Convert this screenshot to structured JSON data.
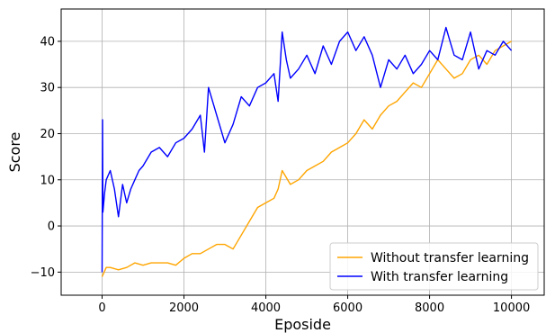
{
  "chart_data": {
    "type": "line",
    "title": "",
    "xlabel": "Eposide",
    "ylabel": "Score",
    "xlim": [
      -1000,
      10800
    ],
    "ylim": [
      -15,
      47
    ],
    "xticks": [
      0,
      2000,
      4000,
      6000,
      8000,
      10000
    ],
    "xtick_labels": [
      "0",
      "2000",
      "4000",
      "6000",
      "8000",
      "10000"
    ],
    "yticks": [
      -10,
      0,
      10,
      20,
      30,
      40
    ],
    "ytick_labels": [
      "−10",
      "0",
      "10",
      "20",
      "30",
      "40"
    ],
    "grid": true,
    "legend_position": "bottom-right",
    "series": [
      {
        "name": "Without transfer learning",
        "color": "#FFA500",
        "x": [
          0,
          100,
          200,
          400,
          600,
          800,
          1000,
          1200,
          1400,
          1600,
          1800,
          2000,
          2200,
          2400,
          2600,
          2800,
          3000,
          3200,
          3400,
          3600,
          3800,
          4000,
          4200,
          4300,
          4400,
          4600,
          4800,
          5000,
          5200,
          5400,
          5600,
          5800,
          6000,
          6200,
          6400,
          6600,
          6800,
          7000,
          7200,
          7400,
          7600,
          7800,
          8000,
          8200,
          8400,
          8600,
          8800,
          9000,
          9200,
          9400,
          9600,
          9800,
          10000
        ],
        "y": [
          -11,
          -9,
          -9,
          -9.5,
          -9,
          -8,
          -8.5,
          -8,
          -8,
          -8,
          -8.5,
          -7,
          -6,
          -6,
          -5,
          -4,
          -4,
          -5,
          -2,
          1,
          4,
          5,
          6,
          8,
          12,
          9,
          10,
          12,
          13,
          14,
          16,
          17,
          18,
          20,
          23,
          21,
          24,
          26,
          27,
          29,
          31,
          30,
          33,
          36,
          34,
          32,
          33,
          36,
          37,
          35,
          38,
          39,
          40
        ]
      },
      {
        "name": "With transfer learning",
        "color": "#0000FF",
        "x": [
          0,
          10,
          20,
          60,
          100,
          200,
          300,
          400,
          500,
          600,
          700,
          800,
          900,
          1000,
          1200,
          1400,
          1600,
          1800,
          2000,
          2200,
          2400,
          2500,
          2600,
          2800,
          3000,
          3200,
          3400,
          3600,
          3800,
          4000,
          4200,
          4300,
          4400,
          4500,
          4600,
          4800,
          5000,
          5200,
          5400,
          5600,
          5800,
          6000,
          6200,
          6400,
          6600,
          6800,
          7000,
          7200,
          7400,
          7600,
          7800,
          8000,
          8200,
          8400,
          8500,
          8600,
          8800,
          9000,
          9200,
          9400,
          9600,
          9800,
          10000
        ],
        "y": [
          -10,
          23,
          3,
          7,
          10,
          12,
          8,
          2,
          9,
          5,
          8,
          10,
          12,
          13,
          16,
          17,
          15,
          18,
          19,
          21,
          24,
          16,
          30,
          24,
          18,
          22,
          28,
          26,
          30,
          31,
          33,
          27,
          42,
          36,
          32,
          34,
          37,
          33,
          39,
          35,
          40,
          42,
          38,
          41,
          37,
          30,
          36,
          34,
          37,
          33,
          35,
          38,
          36,
          43,
          40,
          37,
          36,
          42,
          34,
          38,
          37,
          40,
          38
        ]
      }
    ]
  }
}
